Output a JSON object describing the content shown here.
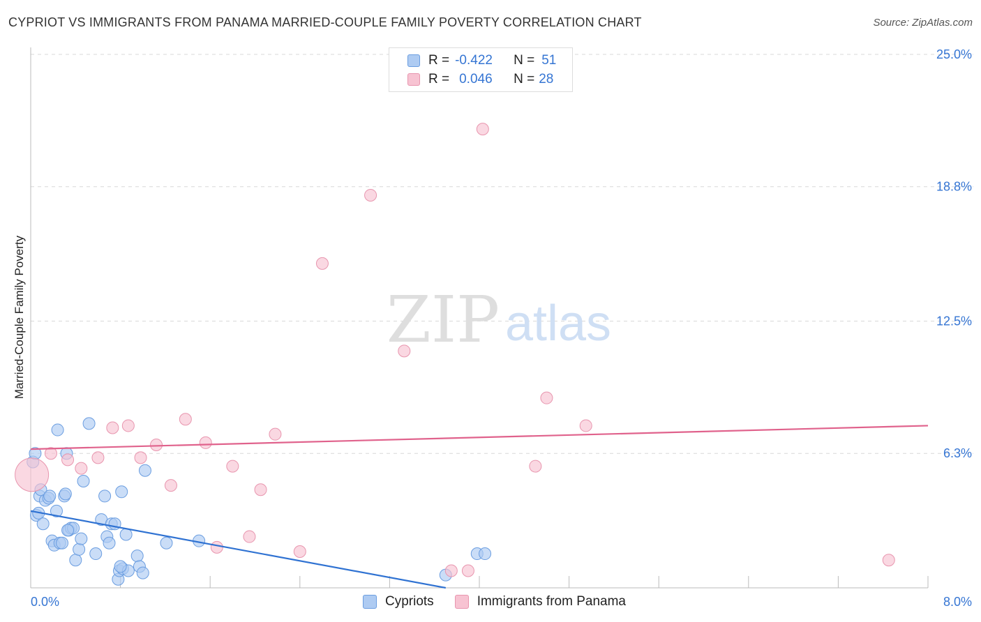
{
  "title": "CYPRIOT VS IMMIGRANTS FROM PANAMA MARRIED-COUPLE FAMILY POVERTY CORRELATION CHART",
  "source": "Source: ZipAtlas.com",
  "watermark": {
    "zip": "ZIP",
    "atlas": "atlas"
  },
  "legend": {
    "series1": {
      "r_label": "R =",
      "r_value": "-0.422",
      "n_label": "N =",
      "n_value": "51"
    },
    "series2": {
      "r_label": "R =",
      "r_value": "0.046",
      "n_label": "N =",
      "n_value": "28"
    }
  },
  "bottom_legend": {
    "series1": "Cypriots",
    "series2": "Immigrants from Panama"
  },
  "colors": {
    "blue_fill": "#aecbf2",
    "blue_stroke": "#6a9de0",
    "blue_line": "#2f72d2",
    "pink_fill": "#f7c3d2",
    "pink_stroke": "#e895ae",
    "pink_line": "#e0628c",
    "axis_text": "#3575d3"
  },
  "chart_data": {
    "type": "scatter",
    "title": "CYPRIOT VS IMMIGRANTS FROM PANAMA MARRIED-COUPLE FAMILY POVERTY CORRELATION CHART",
    "xlabel": "",
    "ylabel": "Married-Couple Family Poverty",
    "xlim": [
      0,
      8.0
    ],
    "ylim": [
      0,
      25.0
    ],
    "x_tick_labels": [
      "0.0%",
      "8.0%"
    ],
    "y_tick_values": [
      6.3,
      12.5,
      18.8,
      25.0
    ],
    "y_tick_labels": [
      "6.3%",
      "12.5%",
      "18.8%",
      "25.0%"
    ],
    "series": [
      {
        "name": "Cypriots",
        "color": "#aecbf2",
        "trend": {
          "x": [
            0.0,
            3.7
          ],
          "y": [
            3.6,
            0.0
          ]
        },
        "points": [
          [
            0.02,
            5.9
          ],
          [
            0.04,
            6.3
          ],
          [
            0.05,
            3.4
          ],
          [
            0.07,
            3.5
          ],
          [
            0.08,
            4.3
          ],
          [
            0.09,
            4.6
          ],
          [
            0.11,
            3.0
          ],
          [
            0.13,
            4.1
          ],
          [
            0.16,
            4.2
          ],
          [
            0.17,
            4.3
          ],
          [
            0.19,
            2.2
          ],
          [
            0.21,
            2.0
          ],
          [
            0.23,
            3.6
          ],
          [
            0.24,
            7.4
          ],
          [
            0.26,
            2.1
          ],
          [
            0.28,
            2.1
          ],
          [
            0.3,
            4.3
          ],
          [
            0.31,
            4.4
          ],
          [
            0.32,
            6.3
          ],
          [
            0.34,
            2.7
          ],
          [
            0.36,
            2.8
          ],
          [
            0.38,
            2.8
          ],
          [
            0.4,
            1.3
          ],
          [
            0.43,
            1.8
          ],
          [
            0.45,
            2.3
          ],
          [
            0.47,
            5.0
          ],
          [
            0.52,
            7.7
          ],
          [
            0.58,
            1.6
          ],
          [
            0.63,
            3.2
          ],
          [
            0.66,
            4.3
          ],
          [
            0.68,
            2.4
          ],
          [
            0.7,
            2.1
          ],
          [
            0.72,
            3.0
          ],
          [
            0.75,
            3.0
          ],
          [
            0.78,
            0.4
          ],
          [
            0.79,
            0.8
          ],
          [
            0.81,
            4.5
          ],
          [
            0.82,
            0.9
          ],
          [
            0.85,
            2.5
          ],
          [
            0.87,
            0.8
          ],
          [
            0.95,
            1.5
          ],
          [
            0.97,
            1.0
          ],
          [
            1.0,
            0.7
          ],
          [
            1.02,
            5.5
          ],
          [
            1.21,
            2.1
          ],
          [
            1.5,
            2.2
          ],
          [
            3.7,
            0.6
          ],
          [
            3.98,
            1.6
          ],
          [
            4.05,
            1.6
          ],
          [
            0.33,
            2.7
          ],
          [
            0.8,
            1.0
          ]
        ]
      },
      {
        "name": "Immigrants from Panama",
        "color": "#f7c3d2",
        "trend": {
          "x": [
            0.0,
            8.0
          ],
          "y": [
            6.5,
            7.6
          ]
        },
        "points": [
          [
            0.01,
            5.3
          ],
          [
            0.18,
            6.3
          ],
          [
            0.33,
            6.0
          ],
          [
            0.45,
            5.6
          ],
          [
            0.6,
            6.1
          ],
          [
            0.73,
            7.5
          ],
          [
            0.87,
            7.6
          ],
          [
            0.98,
            6.1
          ],
          [
            1.12,
            6.7
          ],
          [
            1.25,
            4.8
          ],
          [
            1.38,
            7.9
          ],
          [
            1.56,
            6.8
          ],
          [
            1.66,
            1.9
          ],
          [
            1.8,
            5.7
          ],
          [
            1.95,
            2.4
          ],
          [
            2.05,
            4.6
          ],
          [
            2.18,
            7.2
          ],
          [
            2.4,
            1.7
          ],
          [
            2.6,
            15.2
          ],
          [
            3.03,
            18.4
          ],
          [
            3.33,
            11.1
          ],
          [
            3.75,
            0.8
          ],
          [
            3.9,
            0.8
          ],
          [
            4.03,
            21.5
          ],
          [
            4.5,
            5.7
          ],
          [
            4.6,
            8.9
          ],
          [
            4.95,
            7.6
          ],
          [
            7.65,
            1.3
          ]
        ]
      }
    ]
  }
}
